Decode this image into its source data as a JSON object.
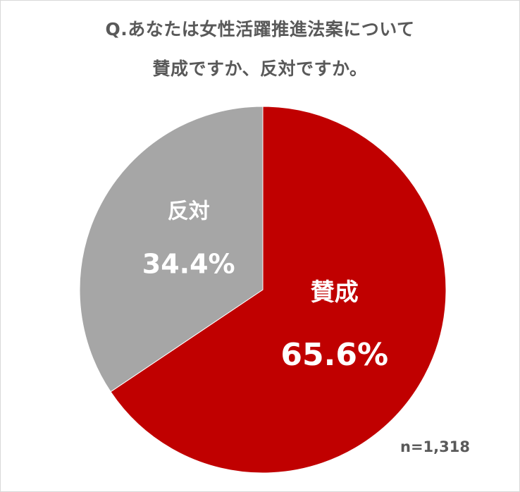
{
  "title": {
    "line1": "Q.あなたは女性活躍推進法案について",
    "line2": "賛成ですか、反対ですか。"
  },
  "sample_note": "n=1,318",
  "chart_data": {
    "type": "pie",
    "title": "Q.あなたは女性活躍推進法案について 賛成ですか、反対ですか。",
    "series": [
      {
        "name": "賛成",
        "value": 65.6,
        "value_label": "65.6%",
        "color": "#c00000"
      },
      {
        "name": "反対",
        "value": 34.4,
        "value_label": "34.4%",
        "color": "#a6a6a6"
      }
    ],
    "start_angle_deg": 0,
    "direction": "clockwise",
    "label_color": "#ffffff"
  }
}
